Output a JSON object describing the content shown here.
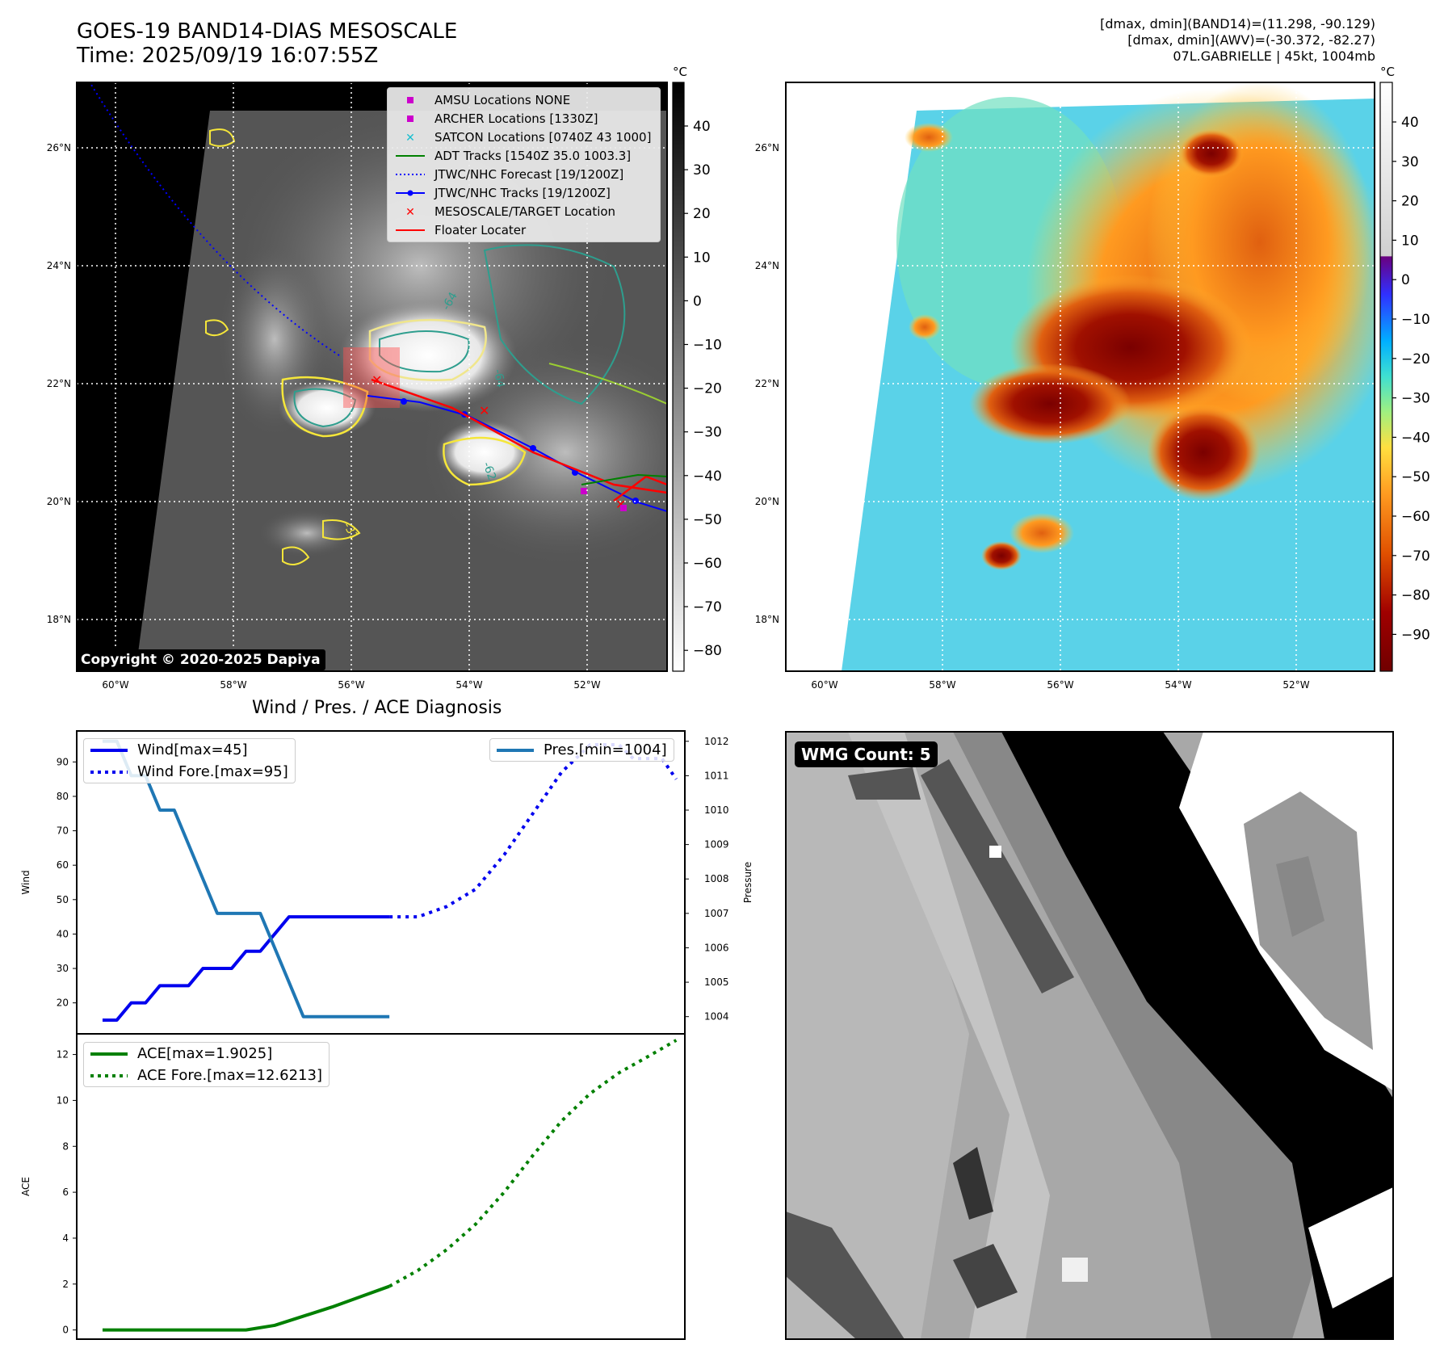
{
  "header": {
    "title_line1": "GOES-19 BAND14-DIAS MESOSCALE",
    "title_line2": "Time: 2025/09/19 16:07:55Z",
    "stats_line1": "[dmax, dmin](BAND14)=(11.298, -90.129)",
    "stats_line2": "[dmax, dmin](AWV)=(-30.372, -82.27)",
    "stats_line3": "07L.GABRIELLE | 45kt, 1004mb"
  },
  "ir_map": {
    "lat_labels": [
      "26°N",
      "24°N",
      "22°N",
      "20°N",
      "18°N"
    ],
    "lon_labels": [
      "60°W",
      "58°W",
      "56°W",
      "54°W",
      "52°W"
    ],
    "copyright": "Copyright © 2020-2025 Dapiya",
    "colorbar_unit": "°C",
    "colorbar_ticks": [
      "40",
      "30",
      "20",
      "10",
      "0",
      "−10",
      "−20",
      "−30",
      "−40",
      "−50",
      "−60",
      "−70",
      "−80"
    ],
    "legend": [
      {
        "label": "AMSU Locations NONE",
        "symbol": "square",
        "color": "#cc00cc"
      },
      {
        "label": "ARCHER Locations [1330Z]",
        "symbol": "square",
        "color": "#cc00cc"
      },
      {
        "label": "SATCON Locations [0740Z 43 1000]",
        "symbol": "x",
        "color": "#17becf"
      },
      {
        "label": "ADT Tracks [1540Z 35.0 1003.3]",
        "symbol": "line",
        "color": "#008000"
      },
      {
        "label": "JTWC/NHC Forecast [19/1200Z]",
        "symbol": "dotted",
        "color": "#0000ff"
      },
      {
        "label": "JTWC/NHC Tracks [19/1200Z]",
        "symbol": "line-dot",
        "color": "#0000ff"
      },
      {
        "label": "MESOSCALE/TARGET Location",
        "symbol": "x",
        "color": "#ff0000"
      },
      {
        "label": "Floater Locater",
        "symbol": "line",
        "color": "#ff0000"
      }
    ],
    "contour_labels": [
      "-64",
      "-64",
      "-62",
      "-31"
    ]
  },
  "color_map": {
    "lat_labels": [
      "26°N",
      "24°N",
      "22°N",
      "20°N",
      "18°N"
    ],
    "lon_labels": [
      "60°W",
      "58°W",
      "56°W",
      "54°W",
      "52°W"
    ],
    "colorbar_unit": "°C",
    "colorbar_ticks": [
      "40",
      "30",
      "20",
      "10",
      "0",
      "−10",
      "−20",
      "−30",
      "−40",
      "−50",
      "−60",
      "−70",
      "−80",
      "−90"
    ]
  },
  "wmg": {
    "badge": "WMG Count: 5"
  },
  "chart_data": [
    {
      "type": "line",
      "title": "Wind / Pres. / ACE Diagnosis",
      "ylabel": "Wind",
      "ylabel_right": "Pressure",
      "ylim": [
        11,
        99
      ],
      "ylim_right": [
        1003.5,
        1012.3
      ],
      "xlim": [
        -0.9,
        20.3
      ],
      "y_ticks": [
        20,
        30,
        40,
        50,
        60,
        70,
        80,
        90
      ],
      "y_ticks_right": [
        1004,
        1005,
        1006,
        1007,
        1008,
        1009,
        1010,
        1011,
        1012
      ],
      "legend_left": "upper left",
      "legend_right": "upper right",
      "series": [
        {
          "name": "Wind[max=45]",
          "axis": "left",
          "style": "solid",
          "color": "#0000ee",
          "x": [
            0,
            0.5,
            1,
            1.5,
            2,
            2.5,
            3,
            3.5,
            4,
            4.5,
            5,
            5.5,
            6,
            6.5,
            7,
            7.5,
            8,
            8.5,
            9,
            9.5,
            10
          ],
          "y": [
            15,
            15,
            20,
            20,
            25,
            25,
            25,
            30,
            30,
            30,
            35,
            35,
            40,
            45,
            45,
            45,
            45,
            45,
            45,
            45,
            45
          ]
        },
        {
          "name": "Wind Fore.[max=95]",
          "axis": "left",
          "style": "dotted",
          "color": "#0000ee",
          "x": [
            10,
            11,
            12,
            13,
            14,
            15,
            16,
            17,
            18,
            18.5,
            19,
            19.5,
            20
          ],
          "y": [
            45,
            45,
            48,
            53,
            63,
            75,
            87,
            95,
            95,
            91,
            91,
            91,
            85
          ]
        },
        {
          "name": "Pres.[min=1004]",
          "axis": "right",
          "style": "solid",
          "color": "#1f77b4",
          "x": [
            0,
            0.5,
            1,
            1.5,
            2,
            2.5,
            3,
            3.5,
            4,
            4.5,
            5,
            5.5,
            6,
            6.5,
            7,
            7.5,
            8,
            8.5,
            9,
            9.5,
            10
          ],
          "y": [
            1012,
            1012,
            1011,
            1011,
            1010,
            1010,
            1009,
            1008,
            1007,
            1007,
            1007,
            1007,
            1006,
            1005,
            1004,
            1004,
            1004,
            1004,
            1004,
            1004,
            1004
          ]
        }
      ]
    },
    {
      "type": "line",
      "ylabel": "ACE",
      "ylim": [
        -0.4,
        12.9
      ],
      "xlim": [
        -0.9,
        20.3
      ],
      "y_ticks": [
        0,
        2,
        4,
        6,
        8,
        10,
        12
      ],
      "legend": "upper left",
      "series": [
        {
          "name": "ACE[max=1.9025]",
          "style": "solid",
          "color": "#008000",
          "x": [
            0,
            1,
            2,
            3,
            4,
            5,
            6,
            7,
            8,
            9,
            10
          ],
          "y": [
            0,
            0,
            0,
            0,
            0,
            0.0,
            0.2,
            0.6,
            1.0,
            1.45,
            1.9025
          ]
        },
        {
          "name": "ACE Fore.[max=12.6213]",
          "style": "dotted",
          "color": "#008000",
          "x": [
            10,
            11,
            12,
            13,
            14,
            15,
            16,
            17,
            18,
            19,
            20
          ],
          "y": [
            1.9025,
            2.6,
            3.5,
            4.6,
            6.0,
            7.6,
            9.1,
            10.3,
            11.2,
            11.9,
            12.6213
          ]
        }
      ]
    }
  ]
}
